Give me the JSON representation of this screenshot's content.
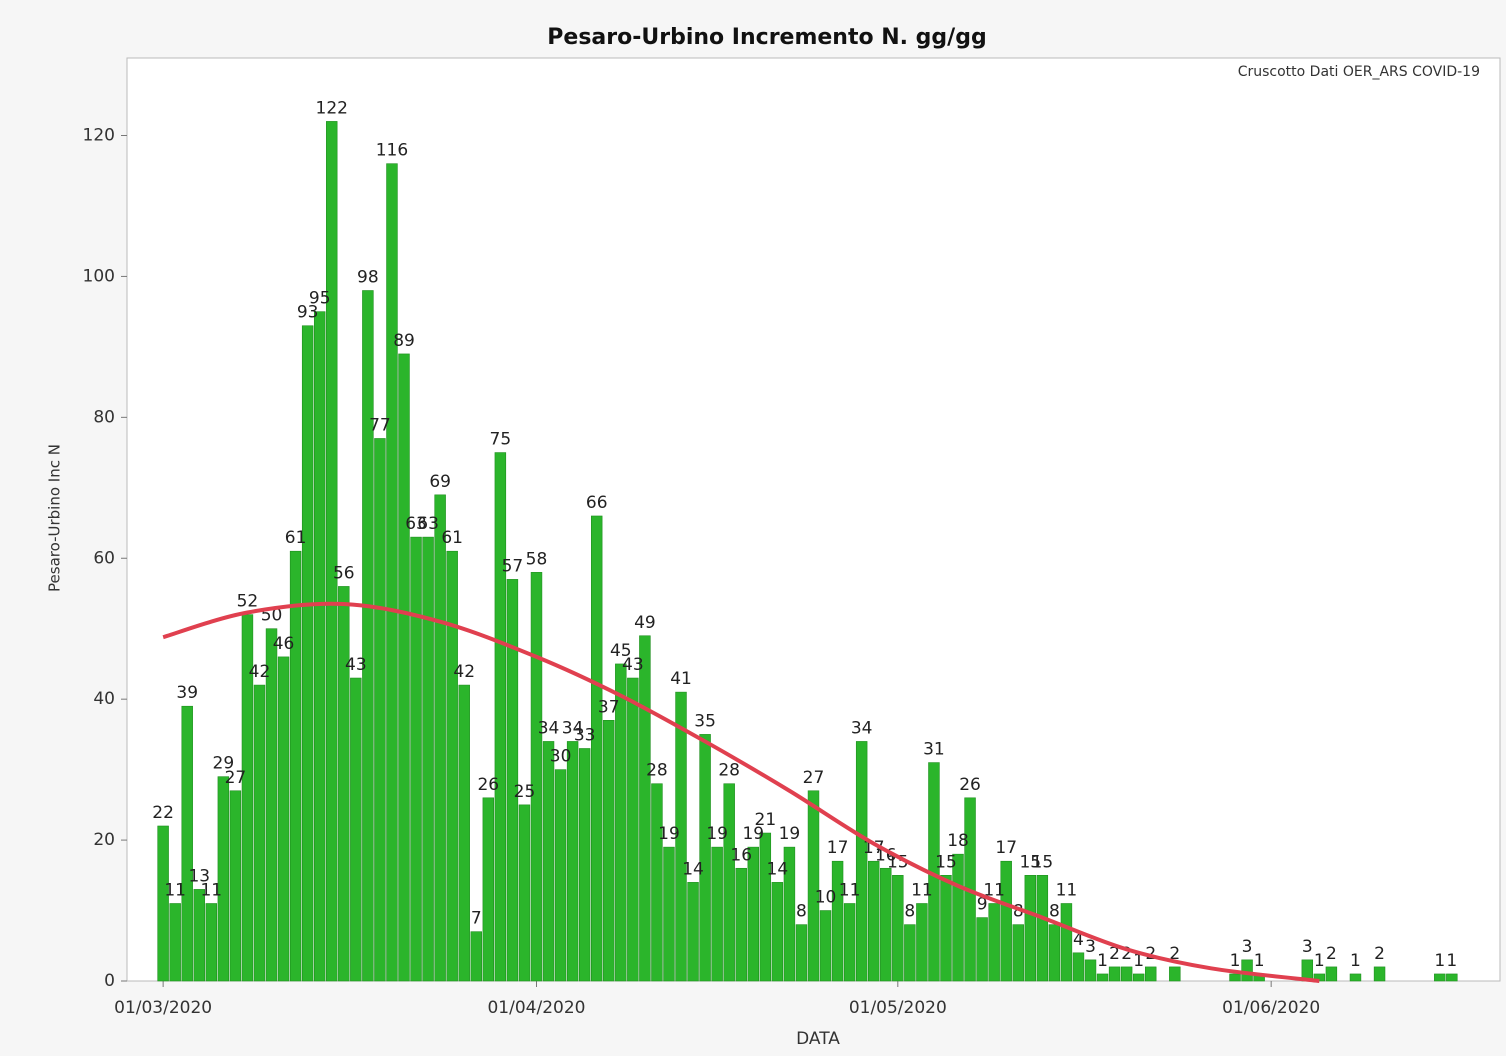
{
  "chart_data": {
    "type": "bar",
    "title": "Pesaro-Urbino Incremento N. gg/gg",
    "subtitle": "Cruscotto Dati OER_ARS COVID-19",
    "x_label": "DATA",
    "y_label": "Pesaro-Urbino Inc N",
    "color": "#2bb52b",
    "x": [
      "01/03/2020",
      "02/03/2020",
      "03/03/2020",
      "04/03/2020",
      "05/03/2020",
      "06/03/2020",
      "07/03/2020",
      "08/03/2020",
      "09/03/2020",
      "10/03/2020",
      "11/03/2020",
      "12/03/2020",
      "13/03/2020",
      "14/03/2020",
      "15/03/2020",
      "16/03/2020",
      "17/03/2020",
      "18/03/2020",
      "19/03/2020",
      "20/03/2020",
      "21/03/2020",
      "22/03/2020",
      "23/03/2020",
      "24/03/2020",
      "25/03/2020",
      "26/03/2020",
      "27/03/2020",
      "28/03/2020",
      "29/03/2020",
      "30/03/2020",
      "31/03/2020",
      "01/04/2020",
      "02/04/2020",
      "03/04/2020",
      "04/04/2020",
      "05/04/2020",
      "06/04/2020",
      "07/04/2020",
      "08/04/2020",
      "09/04/2020",
      "10/04/2020",
      "11/04/2020",
      "12/04/2020",
      "13/04/2020",
      "14/04/2020",
      "15/04/2020",
      "16/04/2020",
      "17/04/2020",
      "18/04/2020",
      "19/04/2020",
      "20/04/2020",
      "21/04/2020",
      "22/04/2020",
      "23/04/2020",
      "24/04/2020",
      "25/04/2020",
      "26/04/2020",
      "27/04/2020",
      "28/04/2020",
      "29/04/2020",
      "30/04/2020",
      "01/05/2020",
      "02/05/2020",
      "03/05/2020",
      "04/05/2020",
      "05/05/2020",
      "06/05/2020",
      "07/05/2020",
      "08/05/2020",
      "09/05/2020",
      "10/05/2020",
      "11/05/2020",
      "12/05/2020",
      "13/05/2020",
      "14/05/2020",
      "15/05/2020",
      "16/05/2020",
      "17/05/2020",
      "18/05/2020",
      "19/05/2020",
      "20/05/2020",
      "21/05/2020",
      "22/05/2020",
      "24/05/2020",
      "29/05/2020",
      "30/05/2020",
      "31/05/2020",
      "04/06/2020",
      "05/06/2020",
      "06/06/2020",
      "08/06/2020",
      "10/06/2020",
      "15/06/2020",
      "16/06/2020"
    ],
    "values": [
      22,
      11,
      39,
      13,
      11,
      29,
      27,
      52,
      42,
      50,
      46,
      61,
      93,
      95,
      122,
      56,
      43,
      98,
      77,
      116,
      89,
      63,
      63,
      69,
      61,
      42,
      7,
      26,
      75,
      57,
      25,
      58,
      34,
      30,
      34,
      33,
      66,
      37,
      45,
      43,
      49,
      28,
      19,
      41,
      14,
      35,
      19,
      28,
      16,
      19,
      21,
      14,
      19,
      8,
      27,
      10,
      17,
      11,
      34,
      17,
      16,
      15,
      8,
      11,
      31,
      15,
      18,
      26,
      9,
      11,
      17,
      8,
      15,
      15,
      8,
      11,
      4,
      3,
      1,
      2,
      2,
      1,
      2,
      2,
      1,
      3,
      1,
      3,
      1,
      2,
      1,
      2,
      1,
      1
    ],
    "trend": {
      "color": "#e0404f",
      "x": [
        "01/03/2020",
        "08/03/2020",
        "16/03/2020",
        "24/03/2020",
        "01/04/2020",
        "08/04/2020",
        "15/04/2020",
        "22/04/2020",
        "29/04/2020",
        "06/05/2020",
        "13/05/2020",
        "20/05/2020",
        "27/05/2020",
        "05/06/2020"
      ],
      "values": [
        48.8,
        52.3,
        53.5,
        51,
        46,
        40.5,
        34,
        27,
        19.5,
        13.5,
        9,
        4.5,
        1.8,
        0
      ]
    },
    "xlim": [
      "27/02/2020",
      "20/06/2020"
    ],
    "xticks": [
      "01/03/2020",
      "01/04/2020",
      "01/05/2020",
      "01/06/2020"
    ],
    "ylim": [
      0,
      131
    ],
    "yticks": [
      0,
      20,
      40,
      60,
      80,
      100,
      120
    ],
    "grid": false
  }
}
